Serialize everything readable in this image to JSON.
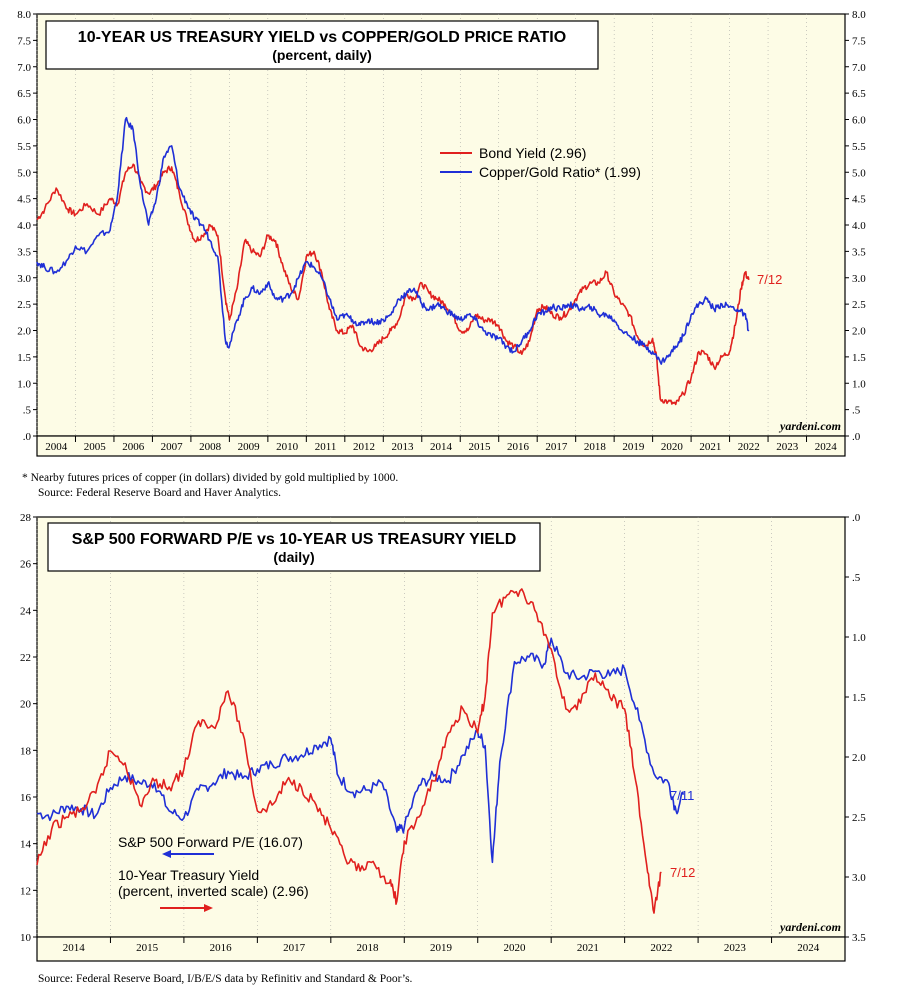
{
  "colors": {
    "red": "#e0201e",
    "blue": "#1f2fd6",
    "plot_bg": "#fdfce6",
    "grid": "#999999"
  },
  "chart_data": [
    {
      "type": "line",
      "title": "10-YEAR US TREASURY YIELD vs COPPER/GOLD PRICE RATIO",
      "subtitle": "(percent, daily)",
      "x_years": [
        "2004",
        "2005",
        "2006",
        "2007",
        "2008",
        "2009",
        "2010",
        "2011",
        "2012",
        "2013",
        "2014",
        "2015",
        "2016",
        "2017",
        "2018",
        "2019",
        "2020",
        "2021",
        "2022",
        "2023",
        "2024"
      ],
      "xlim": [
        2004.0,
        2025.0
      ],
      "ylim": [
        0,
        8
      ],
      "left_ticks": [
        ".0",
        ".5",
        "1.0",
        "1.5",
        "2.0",
        "2.5",
        "3.0",
        "3.5",
        "4.0",
        "4.5",
        "5.0",
        "5.5",
        "6.0",
        "6.5",
        "7.0",
        "7.5",
        "8.0"
      ],
      "right_ticks": [
        ".0",
        ".5",
        "1.0",
        "1.5",
        "2.0",
        "2.5",
        "3.0",
        "3.5",
        "4.0",
        "4.5",
        "5.0",
        "5.5",
        "6.0",
        "6.5",
        "7.0",
        "7.5",
        "8.0"
      ],
      "series": [
        {
          "name": "Bond Yield (2.96)",
          "color": "red",
          "x": [
            2004.0,
            2004.2,
            2004.5,
            2004.8,
            2005.0,
            2005.3,
            2005.6,
            2005.9,
            2006.1,
            2006.3,
            2006.5,
            2006.7,
            2006.9,
            2007.1,
            2007.3,
            2007.5,
            2007.7,
            2007.9,
            2008.1,
            2008.3,
            2008.5,
            2008.7,
            2008.9,
            2009.0,
            2009.2,
            2009.4,
            2009.6,
            2009.8,
            2010.0,
            2010.2,
            2010.4,
            2010.6,
            2010.8,
            2011.0,
            2011.2,
            2011.4,
            2011.6,
            2011.8,
            2012.0,
            2012.2,
            2012.4,
            2012.6,
            2012.8,
            2013.0,
            2013.2,
            2013.4,
            2013.6,
            2013.8,
            2014.0,
            2014.2,
            2014.4,
            2014.6,
            2014.8,
            2015.0,
            2015.2,
            2015.4,
            2015.6,
            2015.8,
            2016.0,
            2016.2,
            2016.4,
            2016.6,
            2016.8,
            2017.0,
            2017.2,
            2017.4,
            2017.6,
            2017.8,
            2018.0,
            2018.2,
            2018.4,
            2018.6,
            2018.8,
            2019.0,
            2019.2,
            2019.4,
            2019.6,
            2019.8,
            2020.0,
            2020.1,
            2020.2,
            2020.4,
            2020.6,
            2020.8,
            2021.0,
            2021.2,
            2021.4,
            2021.6,
            2021.8,
            2022.0,
            2022.15,
            2022.3,
            2022.4,
            2022.5
          ],
          "y": [
            4.1,
            4.3,
            4.7,
            4.3,
            4.2,
            4.4,
            4.2,
            4.5,
            4.4,
            5.0,
            5.15,
            4.8,
            4.6,
            4.75,
            5.0,
            5.1,
            4.6,
            4.1,
            3.7,
            3.8,
            4.0,
            3.8,
            2.6,
            2.2,
            2.8,
            3.7,
            3.5,
            3.4,
            3.8,
            3.7,
            3.2,
            2.8,
            2.6,
            3.4,
            3.5,
            3.1,
            2.4,
            2.0,
            1.95,
            2.1,
            1.7,
            1.6,
            1.7,
            1.85,
            2.0,
            2.2,
            2.7,
            2.6,
            2.9,
            2.7,
            2.6,
            2.5,
            2.3,
            2.0,
            2.0,
            2.3,
            2.2,
            2.2,
            2.1,
            1.8,
            1.7,
            1.55,
            1.8,
            2.4,
            2.45,
            2.3,
            2.25,
            2.35,
            2.6,
            2.8,
            2.9,
            2.9,
            3.1,
            2.7,
            2.5,
            2.3,
            1.9,
            1.7,
            1.85,
            1.5,
            0.7,
            0.65,
            0.6,
            0.8,
            1.1,
            1.6,
            1.55,
            1.3,
            1.5,
            1.6,
            2.1,
            2.8,
            3.1,
            2.96
          ]
        },
        {
          "name": "Copper/Gold Ratio* (1.99)",
          "color": "blue",
          "x": [
            2004.0,
            2004.2,
            2004.5,
            2004.8,
            2005.0,
            2005.3,
            2005.6,
            2005.9,
            2006.1,
            2006.3,
            2006.5,
            2006.7,
            2006.9,
            2007.1,
            2007.3,
            2007.5,
            2007.7,
            2007.9,
            2008.1,
            2008.3,
            2008.5,
            2008.7,
            2008.9,
            2009.0,
            2009.2,
            2009.4,
            2009.6,
            2009.8,
            2010.0,
            2010.2,
            2010.4,
            2010.6,
            2010.8,
            2011.0,
            2011.2,
            2011.4,
            2011.6,
            2011.8,
            2012.0,
            2012.2,
            2012.4,
            2012.6,
            2012.8,
            2013.0,
            2013.2,
            2013.4,
            2013.6,
            2013.8,
            2014.0,
            2014.2,
            2014.4,
            2014.6,
            2014.8,
            2015.0,
            2015.2,
            2015.4,
            2015.6,
            2015.8,
            2016.0,
            2016.2,
            2016.4,
            2016.6,
            2016.8,
            2017.0,
            2017.2,
            2017.4,
            2017.6,
            2017.8,
            2018.0,
            2018.2,
            2018.4,
            2018.6,
            2018.8,
            2019.0,
            2019.2,
            2019.4,
            2019.6,
            2019.8,
            2020.0,
            2020.2,
            2020.4,
            2020.6,
            2020.8,
            2021.0,
            2021.2,
            2021.4,
            2021.6,
            2021.8,
            2022.0,
            2022.2,
            2022.4,
            2022.5
          ],
          "y": [
            3.3,
            3.2,
            3.1,
            3.35,
            3.6,
            3.5,
            3.8,
            3.9,
            4.6,
            6.0,
            5.8,
            4.7,
            4.0,
            4.5,
            5.3,
            5.5,
            4.7,
            4.4,
            4.1,
            4.0,
            3.7,
            3.4,
            1.8,
            1.7,
            2.2,
            2.6,
            2.8,
            2.7,
            2.9,
            2.6,
            2.6,
            2.7,
            3.0,
            3.3,
            3.2,
            3.0,
            2.6,
            2.2,
            2.3,
            2.2,
            2.1,
            2.2,
            2.15,
            2.2,
            2.3,
            2.6,
            2.7,
            2.8,
            2.5,
            2.4,
            2.5,
            2.4,
            2.3,
            2.2,
            2.3,
            2.2,
            2.0,
            1.9,
            1.85,
            1.7,
            1.6,
            1.8,
            2.0,
            2.3,
            2.35,
            2.45,
            2.4,
            2.5,
            2.45,
            2.4,
            2.45,
            2.3,
            2.3,
            2.2,
            2.0,
            1.9,
            1.8,
            1.7,
            1.6,
            1.4,
            1.5,
            1.7,
            1.9,
            2.3,
            2.5,
            2.6,
            2.4,
            2.5,
            2.45,
            2.4,
            2.3,
            1.99
          ]
        }
      ],
      "legend": [
        "Bond Yield (2.96)",
        "Copper/Gold Ratio* (1.99)"
      ],
      "end_labels": [
        {
          "text": "7/12",
          "color": "red",
          "value": 2.96
        }
      ],
      "watermark": "yardeni.com",
      "footnote_line1": "*  Nearby futures prices of copper (in dollars) divided by gold multiplied by 1000.",
      "footnote_line2": "Source: Federal Reserve Board and Haver Analytics."
    },
    {
      "type": "line",
      "title": "S&P 500 FORWARD P/E vs 10-YEAR US TREASURY YIELD",
      "subtitle": "(daily)",
      "x_years": [
        "2014",
        "2015",
        "2016",
        "2017",
        "2018",
        "2019",
        "2020",
        "2021",
        "2022",
        "2023",
        "2024"
      ],
      "xlim": [
        2014.0,
        2025.0
      ],
      "ylim_left": [
        10,
        28
      ],
      "ylim_right_inverted": [
        3.5,
        0.0
      ],
      "left_ticks": [
        "10",
        "12",
        "14",
        "16",
        "18",
        "20",
        "22",
        "24",
        "26",
        "28"
      ],
      "right_ticks": [
        "3.5",
        "3.0",
        "2.5",
        "2.0",
        "1.5",
        "1.0",
        ".5",
        ".0"
      ],
      "series": [
        {
          "name": "S&P 500 Forward P/E  (16.07)",
          "color": "blue",
          "axis": "left",
          "x": [
            2014.0,
            2014.2,
            2014.4,
            2014.6,
            2014.8,
            2015.0,
            2015.2,
            2015.4,
            2015.6,
            2015.8,
            2016.0,
            2016.2,
            2016.4,
            2016.6,
            2016.8,
            2017.0,
            2017.2,
            2017.4,
            2017.6,
            2017.8,
            2018.0,
            2018.1,
            2018.3,
            2018.5,
            2018.7,
            2018.9,
            2019.0,
            2019.2,
            2019.4,
            2019.6,
            2019.8,
            2020.0,
            2020.1,
            2020.2,
            2020.3,
            2020.5,
            2020.7,
            2020.9,
            2021.0,
            2021.2,
            2021.4,
            2021.6,
            2021.8,
            2022.0,
            2022.2,
            2022.4,
            2022.6,
            2022.7,
            2022.8
          ],
          "y": [
            15.3,
            15.2,
            15.6,
            15.5,
            15.2,
            16.4,
            16.9,
            16.6,
            16.6,
            15.4,
            15.1,
            16.3,
            16.6,
            17.1,
            16.8,
            17.2,
            17.4,
            17.7,
            17.8,
            18.2,
            18.5,
            16.9,
            16.2,
            16.3,
            16.6,
            14.5,
            14.7,
            16.5,
            16.9,
            16.7,
            17.8,
            18.8,
            18.2,
            13.2,
            17.5,
            21.8,
            22.0,
            21.7,
            22.8,
            21.3,
            21.1,
            21.4,
            21.2,
            21.5,
            19.3,
            17.0,
            16.6,
            15.4,
            16.1
          ]
        },
        {
          "name": "10-Year Treasury Yield (percent, inverted scale) (2.96)",
          "color": "red",
          "axis": "right",
          "x": [
            2014.0,
            2014.2,
            2014.4,
            2014.6,
            2014.8,
            2015.0,
            2015.2,
            2015.4,
            2015.6,
            2015.8,
            2016.0,
            2016.2,
            2016.4,
            2016.6,
            2016.8,
            2017.0,
            2017.2,
            2017.4,
            2017.6,
            2017.8,
            2018.0,
            2018.2,
            2018.4,
            2018.6,
            2018.8,
            2018.9,
            2019.0,
            2019.2,
            2019.4,
            2019.6,
            2019.8,
            2020.0,
            2020.1,
            2020.2,
            2020.4,
            2020.6,
            2020.8,
            2021.0,
            2021.2,
            2021.4,
            2021.6,
            2021.8,
            2022.0,
            2022.15,
            2022.3,
            2022.4,
            2022.5
          ],
          "y": [
            2.9,
            2.6,
            2.5,
            2.45,
            2.3,
            1.95,
            2.05,
            2.4,
            2.2,
            2.25,
            2.1,
            1.7,
            1.75,
            1.45,
            1.8,
            2.45,
            2.4,
            2.2,
            2.25,
            2.4,
            2.6,
            2.85,
            2.95,
            2.9,
            3.05,
            3.2,
            2.7,
            2.5,
            2.2,
            1.8,
            1.6,
            1.8,
            1.5,
            0.8,
            0.65,
            0.6,
            0.8,
            1.1,
            1.6,
            1.55,
            1.3,
            1.5,
            1.6,
            2.2,
            2.9,
            3.3,
            2.96
          ]
        }
      ],
      "legend_pe": "S&P 500 Forward P/E  (16.07)",
      "legend_yield_line1": "10-Year Treasury Yield",
      "legend_yield_line2": "(percent, inverted scale) (2.96)",
      "end_labels": [
        {
          "text": "7/11",
          "color": "blue",
          "value": 16.07,
          "axis": "left"
        },
        {
          "text": "7/12",
          "color": "red",
          "value": 2.96,
          "axis": "right"
        }
      ],
      "watermark": "yardeni.com",
      "footnote": "Source: Federal Reserve Board, I/B/E/S data by Refinitiv and Standard & Poor’s."
    }
  ]
}
